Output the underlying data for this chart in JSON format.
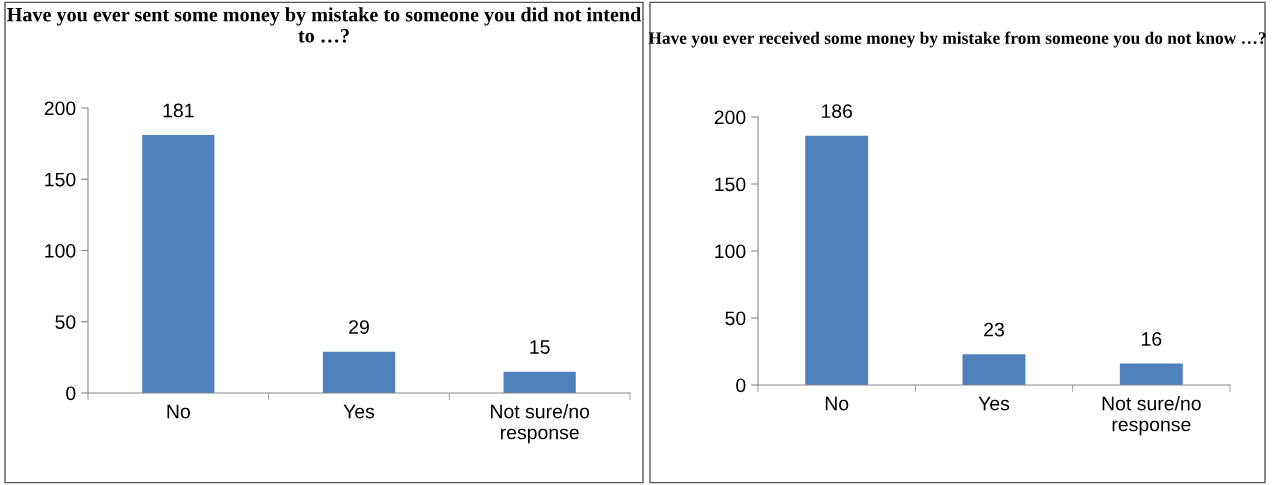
{
  "chart_data": [
    {
      "type": "bar",
      "title": "Have you ever sent some money by mistake to someone you did not intend to …?",
      "categories": [
        "No",
        "Yes",
        "Not sure/no\nresponse"
      ],
      "values": [
        181,
        29,
        15
      ],
      "color": "#4f81bd",
      "ylim": [
        0,
        200
      ],
      "yticks": [
        0,
        50,
        100,
        150,
        200
      ],
      "data_labels": true,
      "grid": false,
      "legend": false
    },
    {
      "type": "bar",
      "title": "Have you ever received some money by mistake from someone you do not know …?",
      "categories": [
        "No",
        "Yes",
        "Not sure/no\nresponse"
      ],
      "values": [
        186,
        23,
        16
      ],
      "color": "#4f81bd",
      "ylim": [
        0,
        200
      ],
      "yticks": [
        0,
        50,
        100,
        150,
        200
      ],
      "data_labels": true,
      "grid": false,
      "legend": false
    }
  ]
}
